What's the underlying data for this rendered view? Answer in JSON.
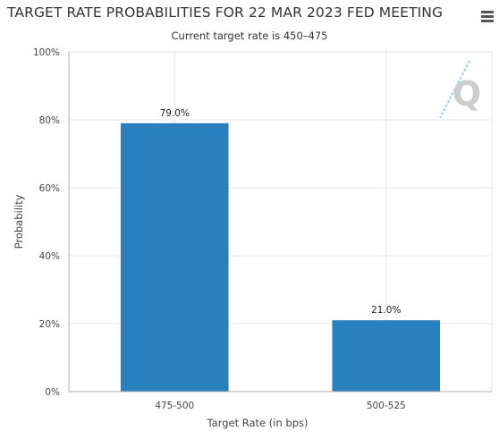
{
  "header": {
    "title": "TARGET RATE PROBABILITIES FOR 22 MAR 2023 FED MEETING",
    "subtitle": "Current target rate is 450–475",
    "menu_icon": "hamburger-menu-icon"
  },
  "watermark": {
    "text": "Q",
    "icon": "quikstrike-logo-icon"
  },
  "colors": {
    "bar": "#2a7fbd",
    "grid": "#e3e3e3",
    "axis": "#b0b0b0"
  },
  "chart_data": {
    "type": "bar",
    "categories": [
      "475-500",
      "500-525"
    ],
    "values": [
      79.0,
      21.0
    ],
    "data_labels": [
      "79.0%",
      "21.0%"
    ],
    "xlabel": "Target Rate (in bps)",
    "ylabel": "Probability",
    "ylim": [
      0,
      100
    ],
    "y_ticks": [
      "0%",
      "20%",
      "40%",
      "60%",
      "80%",
      "100%"
    ],
    "y_tick_values": [
      0,
      20,
      40,
      60,
      80,
      100
    ],
    "grid": true,
    "legend": "none"
  }
}
